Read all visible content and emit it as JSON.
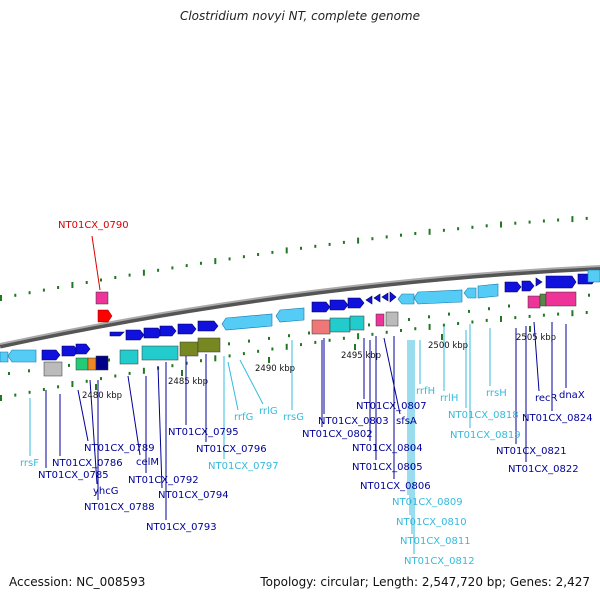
{
  "title": "Clostridium novyi NT, complete genome",
  "footer": {
    "accession": "Accession: NC_008593",
    "summary": "Topology: circular; Length: 2,547,720 bp; Genes: 2,427"
  },
  "colors": {
    "highlight": "#dd0000",
    "gene_label": "#000099",
    "rna_label": "#33bbdd",
    "backbone": "#888888",
    "dots": "#227722",
    "forward_arrow": "#1111dd",
    "rna_arrow": "#55ccf5"
  },
  "ticks": [
    "2480 kbp",
    "2485 kbp",
    "2490 kbp",
    "2495 kbp",
    "2500 kbp",
    "2505 kbp"
  ],
  "highlight_label": "NT01CX_0790",
  "labels": {
    "rrsF": "rrsF",
    "NT01CX_0786": "NT01CX_0786",
    "NT01CX_0785": "NT01CX_0785",
    "NT01CX_0789": "NT01CX_0789",
    "yhcG": "yhcG",
    "NT01CX_0788": "NT01CX_0788",
    "celM": "celM",
    "NT01CX_0792": "NT01CX_0792",
    "NT01CX_0794": "NT01CX_0794",
    "NT01CX_0793": "NT01CX_0793",
    "NT01CX_0795": "NT01CX_0795",
    "NT01CX_0796": "NT01CX_0796",
    "NT01CX_0797": "NT01CX_0797",
    "rrfG": "rrfG",
    "rrlG": "rrlG",
    "rrsG": "rrsG",
    "NT01CX_0803": "NT01CX_0803",
    "NT01CX_0802": "NT01CX_0802",
    "NT01CX_0807": "NT01CX_0807",
    "sfsA": "sfsA",
    "NT01CX_0804": "NT01CX_0804",
    "NT01CX_0805": "NT01CX_0805",
    "NT01CX_0806": "NT01CX_0806",
    "NT01CX_0809": "NT01CX_0809",
    "NT01CX_0810": "NT01CX_0810",
    "NT01CX_0811": "NT01CX_0811",
    "NT01CX_0812": "NT01CX_0812",
    "rrfH": "rrfH",
    "rrlH": "rrlH",
    "rrsH": "rrsH",
    "NT01CX_0818": "NT01CX_0818",
    "NT01CX_0819": "NT01CX_0819",
    "recR": "recR",
    "dnaX": "dnaX",
    "NT01CX_0824": "NT01CX_0824",
    "NT01CX_0821": "NT01CX_0821",
    "NT01CX_0822": "NT01CX_0822"
  }
}
